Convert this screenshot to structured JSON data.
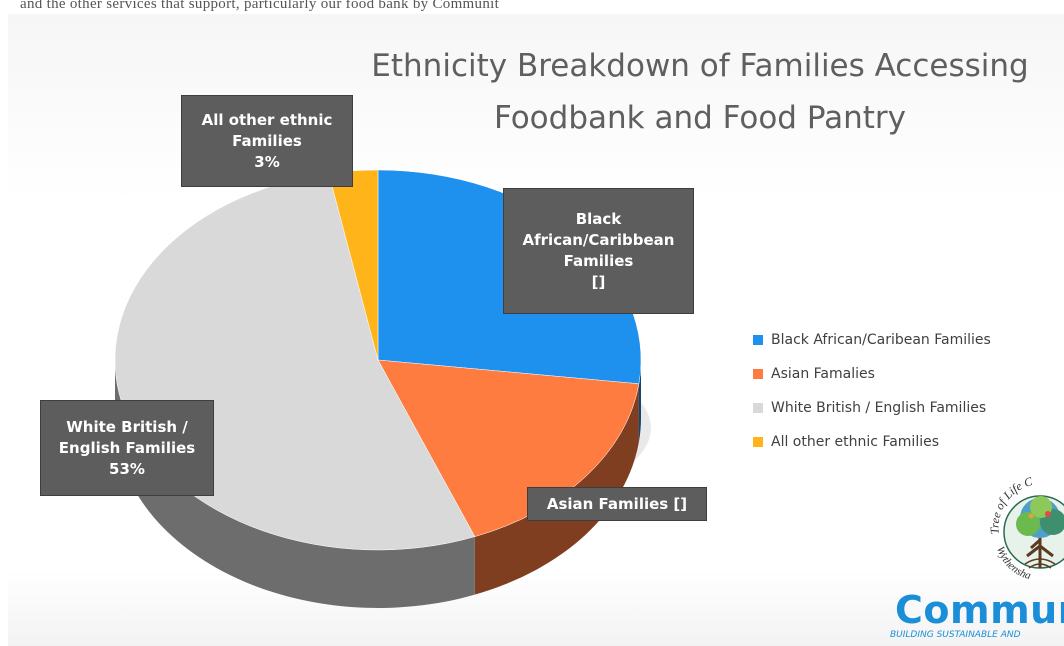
{
  "header_strip": "and the other services that support, particularly our food bank by Communit",
  "chart_data": {
    "type": "pie",
    "title": "Ethnicity Breakdown of Families Accessing Foodbank and Food Pantry",
    "title_lines": [
      "Ethnicity Breakdown of Families Accessing",
      "Foodbank and Food Pantry"
    ],
    "series": [
      {
        "labels": [
          "Black African/Caribean Families",
          "Asian Famalies",
          "White British / English Families",
          "All other ethnic Families"
        ],
        "values": [
          27,
          17,
          53,
          3
        ],
        "colors": [
          "#1e90ee",
          "#ff7c41",
          "#d9d9d9",
          "#ffb51a"
        ]
      }
    ],
    "data_labels": [
      [
        "Black",
        "African/Caribbean",
        "Families",
        "[]"
      ],
      [
        "Asian Families []"
      ],
      [
        "White British /",
        "English Families",
        "53%"
      ],
      [
        "All other ethnic",
        "Families",
        "3%"
      ]
    ],
    "legend_position": "right",
    "style": "3d"
  },
  "logo": {
    "arc_text": "Tree of Life C",
    "arc_text_bottom": "Wythensha",
    "name": "Communit",
    "tagline": "BUILDING SUSTAINABLE AND"
  }
}
